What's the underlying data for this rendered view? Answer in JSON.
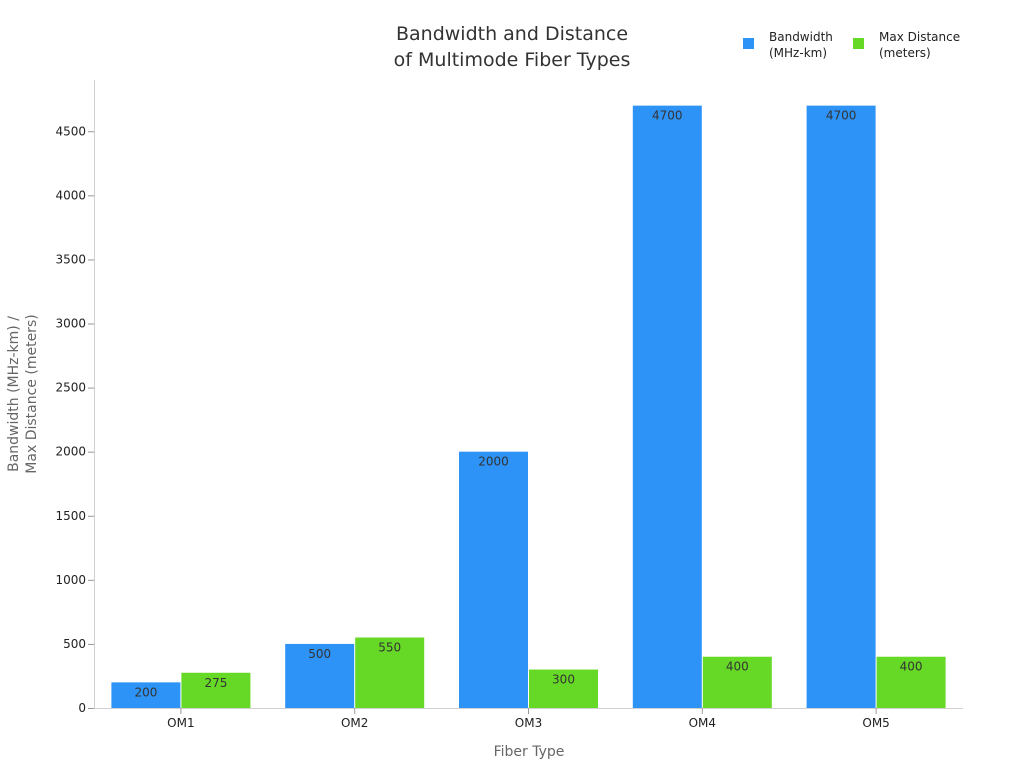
{
  "chart_data": {
    "type": "bar",
    "title_lines": [
      "Bandwidth and Distance",
      "of Multimode Fiber Types"
    ],
    "xlabel": "Fiber Type",
    "ylabel_lines": [
      "Bandwidth (MHz-km) /",
      "Max Distance (meters)"
    ],
    "categories": [
      "OM1",
      "OM2",
      "OM3",
      "OM4",
      "OM5"
    ],
    "series": [
      {
        "name_lines": [
          "Bandwidth",
          "(MHz-km)"
        ],
        "color": "#2E93F7",
        "values": [
          200,
          500,
          2000,
          4700,
          4700
        ]
      },
      {
        "name_lines": [
          "Max Distance",
          "(meters)"
        ],
        "color": "#66D926",
        "values": [
          275,
          550,
          300,
          400,
          400
        ]
      }
    ],
    "ylim": [
      0,
      4900
    ],
    "yticks": [
      0,
      500,
      1000,
      1500,
      2000,
      2500,
      3000,
      3500,
      4000,
      4500
    ],
    "legend": "top-right",
    "grid": false,
    "data_labels": true
  }
}
